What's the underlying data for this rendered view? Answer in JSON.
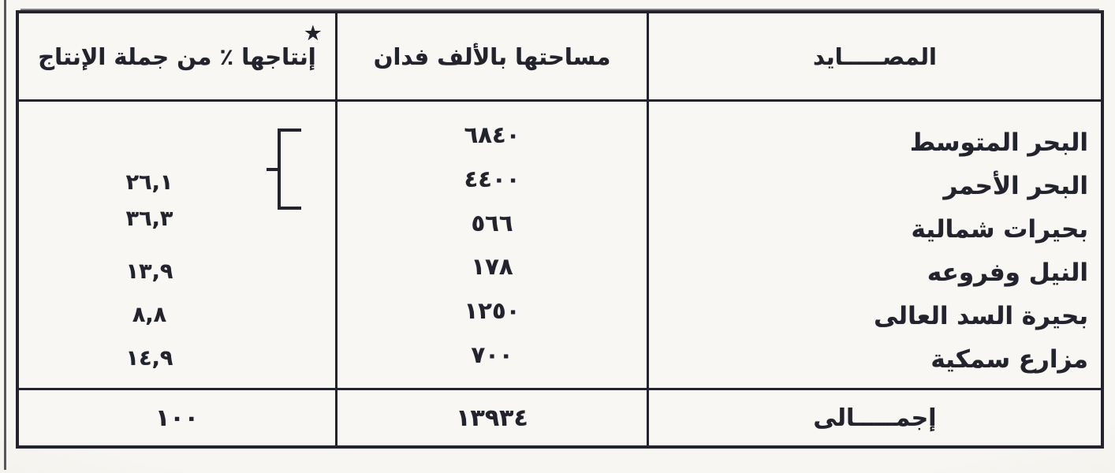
{
  "table": {
    "header": {
      "fisheries": "المصـــــايد",
      "area": "مساحتها بالألف فدان",
      "production": "إنتاجها ٪ من جملة الإنتاج",
      "star": "★"
    },
    "rows": [
      {
        "name": "البحر المتوسط",
        "area": "٦٨٤٠",
        "pct": ""
      },
      {
        "name": "البحر الأحمر",
        "area": "٤٤٠٠",
        "pct": ""
      },
      {
        "name": "بحيرات شمالية",
        "area": "٥٦٦",
        "pct": "٣٦,٣"
      },
      {
        "name": "النيل وفروعه",
        "area": "١٧٨",
        "pct": "١٣,٩"
      },
      {
        "name": "بحيرة السد العالى",
        "area": "١٢٥٠",
        "pct": "٨,٨"
      },
      {
        "name": "مزارع سمكية",
        "area": "٧٠٠",
        "pct": "١٤,٩"
      }
    ],
    "grouped_pct": "٢٦,١",
    "total": {
      "name": "إجمـــــالى",
      "area": "١٣٩٣٤",
      "pct": "١٠٠"
    },
    "colors": {
      "ink": "#23232e",
      "paper": "#f8f7f3"
    }
  }
}
